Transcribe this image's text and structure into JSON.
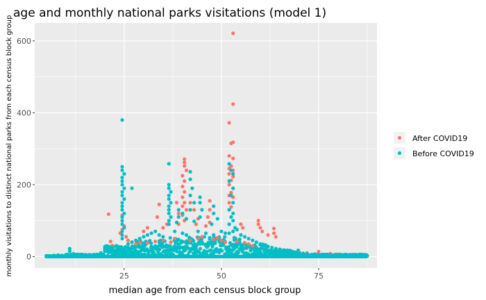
{
  "chart_data": {
    "type": "scatter",
    "title": "age and monthly national parks visitations (model 1)",
    "xlabel": "median age from each census block group",
    "ylabel": "monthly visitations to distinct national parks from each census block group",
    "xlim": [
      2,
      90
    ],
    "ylim": [
      -32,
      650
    ],
    "x_ticks": [
      25,
      50,
      75
    ],
    "y_ticks": [
      0,
      200,
      400,
      600
    ],
    "grid": true,
    "background": "#ebebeb",
    "legend_position": "right",
    "series": [
      {
        "name": "After COVID19",
        "color": "#f8766d",
        "points": [
          [
            53,
            621
          ],
          [
            53,
            424
          ],
          [
            52,
            372
          ],
          [
            52.5,
            315
          ],
          [
            53,
            318
          ],
          [
            52,
            280
          ],
          [
            53,
            273
          ],
          [
            52.5,
            252
          ],
          [
            52,
            245
          ],
          [
            53,
            240
          ],
          [
            52,
            230
          ],
          [
            53,
            222
          ],
          [
            52.5,
            212
          ],
          [
            52,
            200
          ],
          [
            53,
            190
          ],
          [
            52.5,
            178
          ],
          [
            52,
            170
          ],
          [
            53,
            165
          ],
          [
            52,
            150
          ],
          [
            52.5,
            138
          ],
          [
            40.5,
            271
          ],
          [
            40.5,
            262
          ],
          [
            40.5,
            252
          ],
          [
            41,
            240
          ],
          [
            40,
            225
          ],
          [
            40.5,
            210
          ],
          [
            40,
            195
          ],
          [
            40.5,
            180
          ],
          [
            40,
            165
          ],
          [
            40.5,
            150
          ],
          [
            40,
            140
          ],
          [
            41,
            130
          ],
          [
            40,
            115
          ],
          [
            40.5,
            100
          ],
          [
            39,
            120
          ],
          [
            38.5,
            150
          ],
          [
            39,
            90
          ],
          [
            47,
            155
          ],
          [
            47,
            130
          ],
          [
            46.5,
            110
          ],
          [
            47,
            95
          ],
          [
            46,
            85
          ],
          [
            42,
            150
          ],
          [
            43,
            130
          ],
          [
            44,
            105
          ],
          [
            43.5,
            90
          ],
          [
            34,
            145
          ],
          [
            33.5,
            110
          ],
          [
            36,
            90
          ],
          [
            35,
            80
          ],
          [
            31,
            80
          ],
          [
            30,
            70
          ],
          [
            55,
            90
          ],
          [
            55.5,
            80
          ],
          [
            59.5,
            100
          ],
          [
            59.5,
            90
          ],
          [
            60,
            80
          ],
          [
            60.5,
            70
          ],
          [
            63.5,
            78
          ],
          [
            63.5,
            65
          ],
          [
            64,
            55
          ],
          [
            62,
            60
          ],
          [
            21,
            118
          ],
          [
            21.5,
            42
          ],
          [
            22,
            30
          ],
          [
            24.5,
            115
          ],
          [
            24.5,
            100
          ],
          [
            25,
            85
          ],
          [
            24.5,
            75
          ],
          [
            24,
            65
          ],
          [
            25.5,
            55
          ],
          [
            26,
            45
          ],
          [
            27,
            40
          ],
          [
            28,
            35
          ],
          [
            29,
            40
          ],
          [
            31,
            38
          ],
          [
            33,
            42
          ],
          [
            35,
            45
          ],
          [
            37,
            40
          ],
          [
            38,
            50
          ],
          [
            42,
            45
          ],
          [
            44,
            50
          ],
          [
            45,
            55
          ],
          [
            48,
            48
          ],
          [
            49,
            52
          ],
          [
            50,
            45
          ],
          [
            51,
            40
          ],
          [
            54,
            42
          ],
          [
            56,
            38
          ],
          [
            57,
            35
          ],
          [
            58,
            30
          ],
          [
            61,
            28
          ],
          [
            65,
            20
          ],
          [
            66,
            18
          ],
          [
            68,
            15
          ],
          [
            70,
            12
          ],
          [
            72,
            10
          ],
          [
            75,
            14
          ],
          [
            78,
            8
          ],
          [
            80,
            6
          ]
        ]
      },
      {
        "name": "Before COVID19",
        "color": "#00bfc4",
        "points": [
          [
            24.5,
            380
          ],
          [
            24.5,
            250
          ],
          [
            24.5,
            240
          ],
          [
            25,
            230
          ],
          [
            24.5,
            220
          ],
          [
            24.5,
            210
          ],
          [
            24.5,
            200
          ],
          [
            25,
            190
          ],
          [
            24.5,
            180
          ],
          [
            24.5,
            170
          ],
          [
            25,
            160
          ],
          [
            24.5,
            150
          ],
          [
            24.5,
            140
          ],
          [
            24.5,
            130
          ],
          [
            25,
            120
          ],
          [
            24.5,
            110
          ],
          [
            24.5,
            100
          ],
          [
            24.5,
            90
          ],
          [
            25,
            80
          ],
          [
            24.5,
            70
          ],
          [
            24.5,
            60
          ],
          [
            24.5,
            50
          ],
          [
            27,
            190
          ],
          [
            36.5,
            258
          ],
          [
            36.5,
            200
          ],
          [
            36.5,
            190
          ],
          [
            37,
            180
          ],
          [
            36.5,
            170
          ],
          [
            36.5,
            160
          ],
          [
            37,
            150
          ],
          [
            36.5,
            140
          ],
          [
            36.5,
            130
          ],
          [
            36.5,
            120
          ],
          [
            37,
            110
          ],
          [
            36.5,
            100
          ],
          [
            36.5,
            90
          ],
          [
            42,
            236
          ],
          [
            42,
            215
          ],
          [
            42.5,
            190
          ],
          [
            42,
            170
          ],
          [
            43,
            150
          ],
          [
            42,
            130
          ],
          [
            44.5,
            165
          ],
          [
            44.5,
            150
          ],
          [
            45,
            130
          ],
          [
            44.5,
            110
          ],
          [
            39,
            130
          ],
          [
            39,
            110
          ],
          [
            38.5,
            95
          ],
          [
            40,
            120
          ],
          [
            41,
            105
          ],
          [
            43,
            98
          ],
          [
            48,
            140
          ],
          [
            48,
            120
          ],
          [
            49,
            105
          ],
          [
            47.5,
            90
          ],
          [
            52,
            258
          ],
          [
            52.5,
            240
          ],
          [
            53,
            230
          ],
          [
            52,
            210
          ],
          [
            53,
            190
          ],
          [
            52.5,
            170
          ],
          [
            53,
            150
          ],
          [
            52,
            130
          ],
          [
            53,
            120
          ],
          [
            52.5,
            110
          ],
          [
            53,
            100
          ],
          [
            52,
            90
          ],
          [
            53.5,
            80
          ],
          [
            54,
            75
          ],
          [
            53,
            70
          ],
          [
            52,
            65
          ],
          [
            21,
            20
          ],
          [
            22,
            25
          ],
          [
            23,
            30
          ],
          [
            26,
            35
          ],
          [
            27,
            40
          ],
          [
            28,
            45
          ],
          [
            29,
            50
          ],
          [
            30,
            55
          ],
          [
            31,
            60
          ],
          [
            32,
            65
          ],
          [
            33,
            70
          ],
          [
            34,
            60
          ],
          [
            35,
            55
          ],
          [
            38,
            70
          ],
          [
            40,
            65
          ],
          [
            41,
            60
          ],
          [
            44,
            70
          ],
          [
            46,
            65
          ],
          [
            48,
            60
          ],
          [
            50,
            70
          ],
          [
            51,
            65
          ],
          [
            55,
            60
          ],
          [
            56,
            55
          ],
          [
            57,
            50
          ],
          [
            58,
            45
          ],
          [
            59,
            40
          ],
          [
            60,
            35
          ],
          [
            61,
            30
          ],
          [
            62,
            28
          ],
          [
            63,
            25
          ],
          [
            64,
            22
          ],
          [
            65,
            20
          ],
          [
            66,
            18
          ],
          [
            67,
            16
          ],
          [
            68,
            14
          ],
          [
            69,
            12
          ],
          [
            70,
            10
          ],
          [
            71,
            9
          ],
          [
            72,
            8
          ],
          [
            74,
            7
          ],
          [
            76,
            6
          ],
          [
            78,
            5
          ],
          [
            80,
            4
          ],
          [
            82,
            4
          ],
          [
            84,
            3
          ],
          [
            86,
            3
          ],
          [
            87.5,
            2
          ],
          [
            11,
            22
          ],
          [
            11,
            15
          ],
          [
            12,
            8
          ],
          [
            14,
            6
          ],
          [
            16,
            5
          ],
          [
            18,
            6
          ],
          [
            19,
            10
          ],
          [
            20,
            15
          ],
          [
            5,
            2
          ],
          [
            7,
            3
          ],
          [
            8,
            4
          ],
          [
            9,
            3
          ],
          [
            10,
            5
          ]
        ]
      }
    ]
  }
}
